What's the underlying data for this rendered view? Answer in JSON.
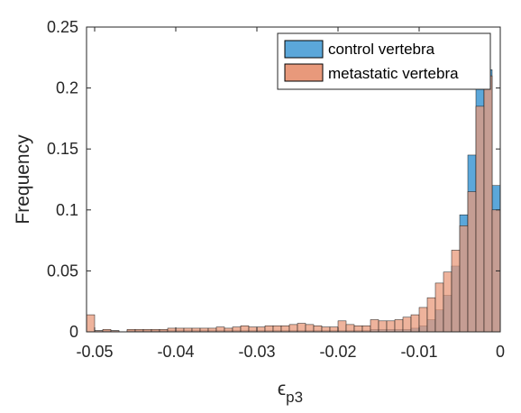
{
  "chart_data": {
    "type": "bar",
    "subtype": "overlapping-histogram",
    "title": "",
    "xlabel_base": "ϵ",
    "xlabel_sub": "p3",
    "ylabel": "Frequency",
    "xlim": [
      -0.051,
      0
    ],
    "ylim": [
      0,
      0.25
    ],
    "xticks": [
      -0.05,
      -0.04,
      -0.03,
      -0.02,
      -0.01,
      0
    ],
    "xtick_labels": [
      "-0.05",
      "-0.04",
      "-0.03",
      "-0.02",
      "-0.01",
      "0"
    ],
    "yticks": [
      0,
      0.05,
      0.1,
      0.15,
      0.2,
      0.25
    ],
    "ytick_labels": [
      "0",
      "0.05",
      "0.1",
      "0.15",
      "0.2",
      "0.25"
    ],
    "grid": false,
    "legend_position": "top-right",
    "bin_width": 0.001,
    "bin_left_edges": [
      -0.051,
      -0.05,
      -0.049,
      -0.048,
      -0.047,
      -0.046,
      -0.045,
      -0.044,
      -0.043,
      -0.042,
      -0.041,
      -0.04,
      -0.039,
      -0.038,
      -0.037,
      -0.036,
      -0.035,
      -0.034,
      -0.033,
      -0.032,
      -0.031,
      -0.03,
      -0.029,
      -0.028,
      -0.027,
      -0.026,
      -0.025,
      -0.024,
      -0.023,
      -0.022,
      -0.021,
      -0.02,
      -0.019,
      -0.018,
      -0.017,
      -0.016,
      -0.015,
      -0.014,
      -0.013,
      -0.012,
      -0.011,
      -0.01,
      -0.009,
      -0.008,
      -0.007,
      -0.006,
      -0.005,
      -0.004,
      -0.003,
      -0.002,
      -0.001
    ],
    "series": [
      {
        "name": "control vertebra",
        "color": "#0072BD",
        "fill": "#5BA7DA",
        "values": [
          0.0,
          0.001,
          0.001,
          0.001,
          0.0,
          0.001,
          0.001,
          0.001,
          0.001,
          0.001,
          0.001,
          0.001,
          0.001,
          0.001,
          0.001,
          0.001,
          0.001,
          0.001,
          0.001,
          0.001,
          0.001,
          0.001,
          0.001,
          0.001,
          0.001,
          0.001,
          0.001,
          0.001,
          0.001,
          0.001,
          0.001,
          0.001,
          0.001,
          0.001,
          0.001,
          0.002,
          0.002,
          0.002,
          0.002,
          0.002,
          0.003,
          0.005,
          0.01,
          0.018,
          0.03,
          0.054,
          0.096,
          0.145,
          0.2,
          0.215,
          0.12
        ]
      },
      {
        "name": "metastatic vertebra",
        "color": "#D95319",
        "fill": "#E8997B",
        "values": [
          0.014,
          0.001,
          0.002,
          0.001,
          0.0,
          0.002,
          0.002,
          0.002,
          0.002,
          0.002,
          0.003,
          0.003,
          0.003,
          0.003,
          0.003,
          0.003,
          0.004,
          0.003,
          0.004,
          0.005,
          0.004,
          0.004,
          0.005,
          0.005,
          0.005,
          0.006,
          0.007,
          0.006,
          0.005,
          0.004,
          0.004,
          0.009,
          0.006,
          0.005,
          0.005,
          0.01,
          0.009,
          0.009,
          0.01,
          0.012,
          0.014,
          0.02,
          0.028,
          0.04,
          0.049,
          0.067,
          0.087,
          0.115,
          0.185,
          0.21,
          0.1
        ]
      }
    ]
  }
}
